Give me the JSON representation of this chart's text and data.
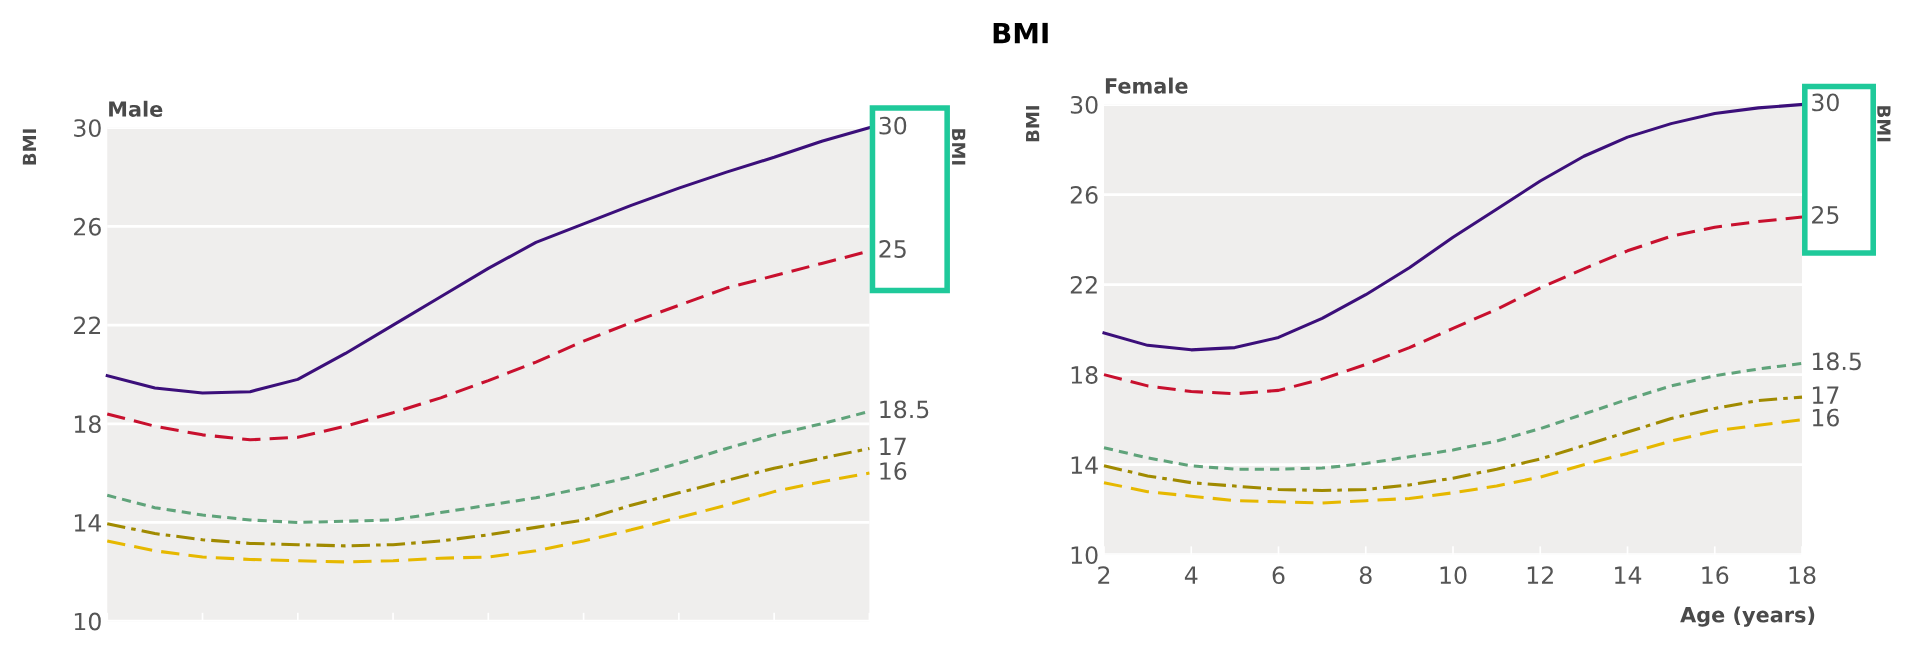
{
  "chart_data": [
    {
      "type": "line",
      "title": "Male",
      "ylabel": "BMI",
      "y2label": "BMI",
      "annotations": [
        "BMI"
      ],
      "categories": [
        null,
        null,
        null,
        null,
        null,
        null,
        null,
        null,
        null,
        null,
        null,
        null,
        null,
        null,
        null,
        null,
        null
      ],
      "ylim": [
        10,
        30
      ],
      "yticks": [
        10,
        14,
        18,
        22,
        26,
        30
      ],
      "grid": "y",
      "tick_labels": "y",
      "legend": false,
      "series": [
        {
          "name": "30",
          "color": "#3b0f7a",
          "line_style": "solid",
          "values": [
            19.95,
            19.45,
            19.25,
            19.3,
            19.8,
            20.85,
            22.0,
            23.15,
            24.3,
            25.35,
            26.1,
            26.85,
            27.55,
            28.2,
            28.8,
            29.45,
            30
          ]
        },
        {
          "name": "25",
          "color": "#c8102e",
          "line_style": "dashed",
          "values": [
            18.4,
            17.9,
            17.55,
            17.35,
            17.45,
            17.9,
            18.45,
            19.05,
            19.75,
            20.5,
            21.35,
            22.1,
            22.8,
            23.5,
            24.0,
            24.5,
            25
          ]
        },
        {
          "name": "18.5",
          "color": "#5fa37a",
          "line_style": "dotted",
          "values": [
            15.1,
            14.6,
            14.3,
            14.1,
            14.0,
            14.05,
            14.1,
            14.4,
            14.7,
            15.0,
            15.4,
            15.85,
            16.4,
            17.0,
            17.55,
            18.0,
            18.5
          ]
        },
        {
          "name": "17",
          "color": "#a08a00",
          "line_style": "dashdot",
          "values": [
            13.95,
            13.55,
            13.3,
            13.15,
            13.1,
            13.05,
            13.1,
            13.25,
            13.5,
            13.8,
            14.1,
            14.7,
            15.2,
            15.7,
            16.2,
            16.6,
            17
          ]
        },
        {
          "name": "16",
          "color": "#e6b800",
          "line_style": "dashed",
          "values": [
            13.25,
            12.85,
            12.6,
            12.5,
            12.45,
            12.4,
            12.45,
            12.55,
            12.6,
            12.85,
            13.25,
            13.7,
            14.2,
            14.7,
            15.25,
            15.65,
            16
          ]
        }
      ]
    },
    {
      "type": "line",
      "title": "Female",
      "ylabel": "BMI",
      "y2label": "BMI",
      "xlabel": "Age (years)",
      "x": [
        2,
        3,
        4,
        5,
        6,
        7,
        8,
        9,
        10,
        11,
        12,
        13,
        14,
        15,
        16,
        17,
        18
      ],
      "xlim": [
        2,
        18
      ],
      "xticks": [
        2,
        4,
        6,
        8,
        10,
        12,
        14,
        16,
        18
      ],
      "ylim": [
        10,
        30
      ],
      "yticks": [
        10,
        14,
        18,
        22,
        26,
        30
      ],
      "grid": "y",
      "legend": false,
      "series": [
        {
          "name": "30",
          "color": "#3b0f7a",
          "line_style": "solid",
          "values": [
            19.85,
            19.3,
            19.1,
            19.2,
            19.65,
            20.5,
            21.55,
            22.75,
            24.1,
            25.35,
            26.6,
            27.7,
            28.55,
            29.15,
            29.6,
            29.85,
            30
          ]
        },
        {
          "name": "25",
          "color": "#c8102e",
          "line_style": "dashed",
          "values": [
            18.0,
            17.5,
            17.25,
            17.15,
            17.3,
            17.8,
            18.45,
            19.2,
            20.05,
            20.9,
            21.85,
            22.7,
            23.5,
            24.15,
            24.55,
            24.8,
            25
          ]
        },
        {
          "name": "18.5",
          "color": "#5fa37a",
          "line_style": "dotted",
          "values": [
            14.75,
            14.3,
            13.95,
            13.8,
            13.8,
            13.85,
            14.05,
            14.35,
            14.65,
            15.05,
            15.6,
            16.25,
            16.9,
            17.5,
            17.95,
            18.25,
            18.5
          ]
        },
        {
          "name": "17",
          "color": "#a08a00",
          "line_style": "dashdot",
          "values": [
            13.95,
            13.5,
            13.2,
            13.05,
            12.9,
            12.85,
            12.9,
            13.1,
            13.4,
            13.8,
            14.25,
            14.85,
            15.45,
            16.05,
            16.5,
            16.85,
            17
          ]
        },
        {
          "name": "16",
          "color": "#e6b800",
          "line_style": "dashed",
          "values": [
            13.2,
            12.8,
            12.6,
            12.4,
            12.35,
            12.3,
            12.4,
            12.5,
            12.75,
            13.05,
            13.45,
            14.0,
            14.5,
            15.05,
            15.5,
            15.75,
            16
          ]
        }
      ]
    }
  ]
}
